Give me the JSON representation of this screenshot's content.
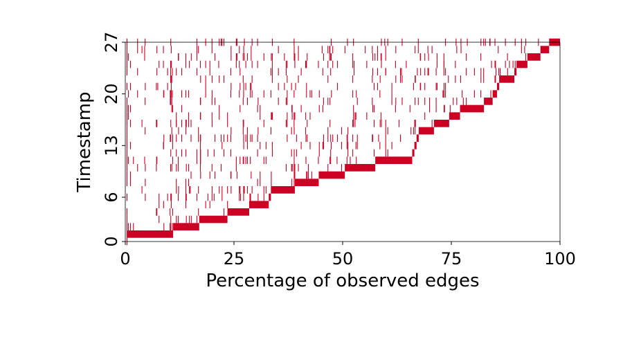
{
  "chart_data": {
    "type": "heatmap",
    "xlabel": "Percentage of observed edges",
    "ylabel": "Timestamp",
    "xlim": [
      0,
      100
    ],
    "ylim": [
      0,
      27
    ],
    "x_ticks": [
      0,
      25,
      50,
      75,
      100
    ],
    "y_ticks": [
      0,
      6,
      13,
      20,
      27
    ],
    "mark_color": "#cc0022",
    "grid": false,
    "first_observed": [
      {
        "timestamp": 1,
        "x_start": 0.5,
        "x_end": 11
      },
      {
        "timestamp": 2,
        "x_start": 11,
        "x_end": 17
      },
      {
        "timestamp": 3,
        "x_start": 17,
        "x_end": 23.5
      },
      {
        "timestamp": 4,
        "x_start": 23.5,
        "x_end": 28.5
      },
      {
        "timestamp": 5,
        "x_start": 28.5,
        "x_end": 33
      },
      {
        "timestamp": 6,
        "x_start": 33,
        "x_end": 33.5
      },
      {
        "timestamp": 7,
        "x_start": 33.5,
        "x_end": 39
      },
      {
        "timestamp": 8,
        "x_start": 39,
        "x_end": 44.5
      },
      {
        "timestamp": 9,
        "x_start": 44.5,
        "x_end": 50.5
      },
      {
        "timestamp": 10,
        "x_start": 50.5,
        "x_end": 57.5
      },
      {
        "timestamp": 11,
        "x_start": 57.5,
        "x_end": 66
      },
      {
        "timestamp": 12,
        "x_start": 66,
        "x_end": 66.5
      },
      {
        "timestamp": 13,
        "x_start": 66.5,
        "x_end": 67
      },
      {
        "timestamp": 14,
        "x_start": 67,
        "x_end": 67.5
      },
      {
        "timestamp": 15,
        "x_start": 67.5,
        "x_end": 71
      },
      {
        "timestamp": 16,
        "x_start": 71,
        "x_end": 74.5
      },
      {
        "timestamp": 17,
        "x_start": 74.5,
        "x_end": 77
      },
      {
        "timestamp": 18,
        "x_start": 77,
        "x_end": 82.5
      },
      {
        "timestamp": 19,
        "x_start": 82.5,
        "x_end": 84.5
      },
      {
        "timestamp": 20,
        "x_start": 84.5,
        "x_end": 85.5
      },
      {
        "timestamp": 21,
        "x_start": 85.5,
        "x_end": 86
      },
      {
        "timestamp": 22,
        "x_start": 86,
        "x_end": 89.5
      },
      {
        "timestamp": 23,
        "x_start": 89.5,
        "x_end": 90
      },
      {
        "timestamp": 24,
        "x_start": 90,
        "x_end": 92.5
      },
      {
        "timestamp": 25,
        "x_start": 92.5,
        "x_end": 95.5
      },
      {
        "timestamp": 26,
        "x_start": 95.5,
        "x_end": 97.5
      },
      {
        "timestamp": 27,
        "x_start": 97.5,
        "x_end": 100
      }
    ],
    "density": "sparse vertical marks above each timestamp's first-observed block"
  }
}
